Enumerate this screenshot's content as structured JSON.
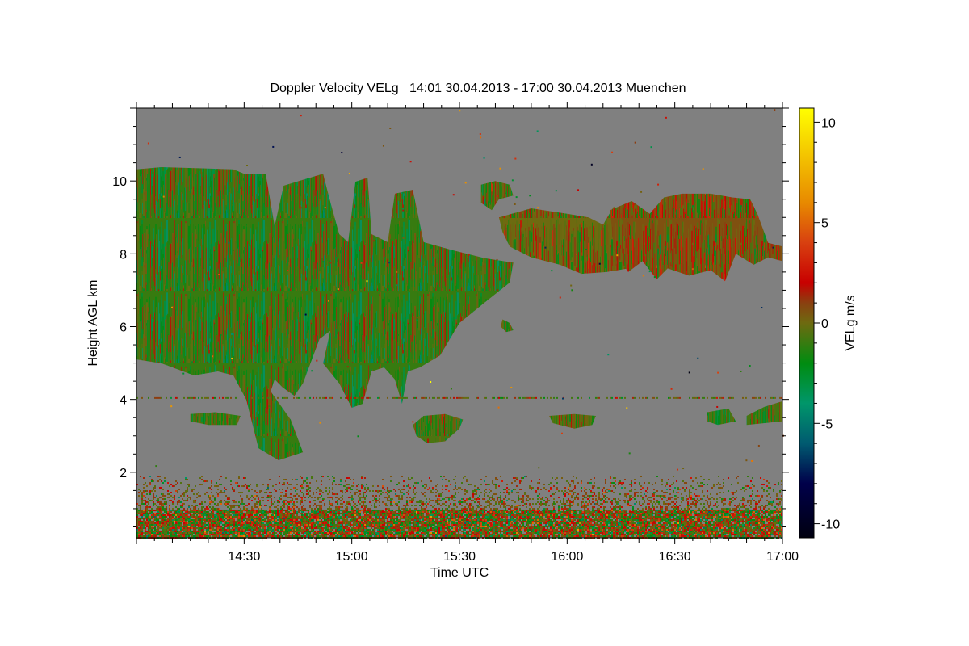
{
  "chart_data": {
    "type": "heatmap",
    "title": "Doppler Velocity VELg   14:01 30.04.2013 - 17:00 30.04.2013 Muenchen",
    "xlabel": "Time UTC",
    "ylabel": "Height AGL km",
    "x_units": "minutes since 14:00 UTC",
    "xlim": [
      0,
      180
    ],
    "ylim": [
      0.2,
      12
    ],
    "xticks": [
      {
        "v": 30,
        "label": "14:30"
      },
      {
        "v": 60,
        "label": "15:00"
      },
      {
        "v": 90,
        "label": "15:30"
      },
      {
        "v": 120,
        "label": "16:00"
      },
      {
        "v": 150,
        "label": "16:30"
      },
      {
        "v": 180,
        "label": "17:00"
      }
    ],
    "yticks": [
      {
        "v": 2,
        "label": "2"
      },
      {
        "v": 4,
        "label": "4"
      },
      {
        "v": 6,
        "label": "6"
      },
      {
        "v": 8,
        "label": "8"
      },
      {
        "v": 10,
        "label": "10"
      }
    ],
    "background_color": "#808080",
    "colorbar": {
      "label": "VELg m/s",
      "clim": [
        -10.7,
        10.7
      ],
      "ticks": [
        {
          "v": 10,
          "label": "10"
        },
        {
          "v": 5,
          "label": "5"
        },
        {
          "v": 0,
          "label": "0"
        },
        {
          "v": -5,
          "label": "-5"
        },
        {
          "v": -10,
          "label": "-10"
        }
      ],
      "stops": [
        [
          -10.7,
          "#000010"
        ],
        [
          -8,
          "#00004a"
        ],
        [
          -6,
          "#005a70"
        ],
        [
          -4,
          "#00966a"
        ],
        [
          -2,
          "#008c10"
        ],
        [
          0,
          "#6e6a10"
        ],
        [
          1,
          "#8a4010"
        ],
        [
          2,
          "#c80000"
        ],
        [
          4,
          "#d84010"
        ],
        [
          6,
          "#e88a00"
        ],
        [
          10.7,
          "#ffff00"
        ]
      ]
    },
    "regions": [
      {
        "name": "main-cirrus-cloud",
        "mean_velocity": -1.0,
        "spread": 1.6,
        "polygon": [
          [
            0,
            10.32
          ],
          [
            7,
            10.38
          ],
          [
            27,
            10.32
          ],
          [
            30,
            10.2
          ],
          [
            36,
            10.2
          ],
          [
            38.5,
            8.76
          ],
          [
            41,
            9.87
          ],
          [
            52,
            10.2
          ],
          [
            54,
            9.43
          ],
          [
            56.5,
            8.54
          ],
          [
            59,
            8.32
          ],
          [
            61,
            9.98
          ],
          [
            64.4,
            10.09
          ],
          [
            65.5,
            8.54
          ],
          [
            70,
            8.32
          ],
          [
            72,
            9.65
          ],
          [
            77,
            9.76
          ],
          [
            80,
            8.32
          ],
          [
            88,
            8.1
          ],
          [
            97,
            7.88
          ],
          [
            105,
            7.76
          ],
          [
            104,
            7.21
          ],
          [
            97,
            6.66
          ],
          [
            90,
            6.1
          ],
          [
            84.6,
            5.21
          ],
          [
            79,
            4.88
          ],
          [
            75.6,
            4.77
          ],
          [
            74,
            3.88
          ],
          [
            72,
            4.55
          ],
          [
            69,
            4.88
          ],
          [
            65.5,
            4.77
          ],
          [
            63,
            3.88
          ],
          [
            60,
            3.77
          ],
          [
            56.5,
            4.44
          ],
          [
            52,
            4.99
          ],
          [
            54,
            5.88
          ],
          [
            51,
            5.66
          ],
          [
            46.4,
            4.44
          ],
          [
            44,
            4.1
          ],
          [
            40.7,
            4.33
          ],
          [
            38.5,
            4.55
          ],
          [
            37.4,
            4.22
          ],
          [
            43,
            3.44
          ],
          [
            46.4,
            2.55
          ],
          [
            39.6,
            2.33
          ],
          [
            34,
            2.66
          ],
          [
            30.6,
            3.99
          ],
          [
            27,
            4.66
          ],
          [
            22.7,
            4.77
          ],
          [
            16,
            4.66
          ],
          [
            7,
            4.99
          ],
          [
            0,
            5.1
          ]
        ]
      },
      {
        "name": "cirrus-cap-1530",
        "mean_velocity": -0.5,
        "spread": 1.4,
        "polygon": [
          [
            96,
            9.9
          ],
          [
            100,
            10.0
          ],
          [
            104,
            9.9
          ],
          [
            105,
            9.6
          ],
          [
            101,
            9.5
          ],
          [
            99,
            9.2
          ],
          [
            96,
            9.4
          ]
        ]
      },
      {
        "name": "cirrus-band-1545",
        "mean_velocity": 0.0,
        "spread": 1.5,
        "polygon": [
          [
            101,
            9.0
          ],
          [
            110,
            9.25
          ],
          [
            120,
            9.1
          ],
          [
            126,
            9.0
          ],
          [
            130,
            8.8
          ],
          [
            133,
            9.3
          ],
          [
            136,
            8.9
          ],
          [
            139,
            8.3
          ],
          [
            137,
            7.6
          ],
          [
            131,
            7.5
          ],
          [
            124,
            7.45
          ],
          [
            118,
            7.7
          ],
          [
            110,
            7.9
          ],
          [
            104,
            8.2
          ],
          [
            102,
            8.6
          ]
        ]
      },
      {
        "name": "cirrus-band-1630",
        "mean_velocity": 0.6,
        "spread": 1.6,
        "polygon": [
          [
            132,
            9.2
          ],
          [
            138,
            9.45
          ],
          [
            143,
            9.1
          ],
          [
            147,
            9.55
          ],
          [
            152,
            9.65
          ],
          [
            160,
            9.65
          ],
          [
            166,
            9.55
          ],
          [
            171,
            9.5
          ],
          [
            173,
            9.1
          ],
          [
            176,
            8.3
          ],
          [
            180,
            8.2
          ],
          [
            180,
            7.8
          ],
          [
            176,
            7.9
          ],
          [
            172,
            7.7
          ],
          [
            167,
            8.0
          ],
          [
            164,
            7.25
          ],
          [
            160,
            7.55
          ],
          [
            154,
            7.4
          ],
          [
            148,
            7.6
          ],
          [
            145,
            7.3
          ],
          [
            141,
            7.8
          ],
          [
            137,
            7.5
          ],
          [
            133,
            8.1
          ]
        ]
      },
      {
        "name": "small-cloud-1440",
        "mean_velocity": -0.8,
        "spread": 1.2,
        "polygon": [
          [
            15,
            3.6
          ],
          [
            22,
            3.65
          ],
          [
            29,
            3.55
          ],
          [
            28,
            3.3
          ],
          [
            20,
            3.3
          ],
          [
            15,
            3.4
          ]
        ]
      },
      {
        "name": "small-cloud-1525",
        "mean_velocity": -0.6,
        "spread": 1.2,
        "polygon": [
          [
            77,
            3.3
          ],
          [
            80,
            3.55
          ],
          [
            86,
            3.6
          ],
          [
            91,
            3.45
          ],
          [
            90,
            3.2
          ],
          [
            86,
            2.85
          ],
          [
            81,
            2.8
          ],
          [
            78,
            3.0
          ]
        ]
      },
      {
        "name": "small-cloud-1545",
        "mean_velocity": -1.0,
        "spread": 1.0,
        "polygon": [
          [
            102,
            6.2
          ],
          [
            104,
            6.1
          ],
          [
            105,
            5.9
          ],
          [
            103,
            5.85
          ],
          [
            101.5,
            6.0
          ]
        ]
      },
      {
        "name": "small-cloud-1605",
        "mean_velocity": -0.5,
        "spread": 1.2,
        "polygon": [
          [
            115,
            3.55
          ],
          [
            122,
            3.6
          ],
          [
            128,
            3.55
          ],
          [
            127,
            3.3
          ],
          [
            122,
            3.2
          ],
          [
            116,
            3.35
          ]
        ]
      },
      {
        "name": "small-cloud-1650",
        "mean_velocity": -1.2,
        "spread": 1.2,
        "polygon": [
          [
            159,
            3.65
          ],
          [
            165,
            3.75
          ],
          [
            167,
            3.4
          ],
          [
            162,
            3.3
          ],
          [
            159,
            3.4
          ]
        ]
      },
      {
        "name": "small-cloud-1657",
        "mean_velocity": -0.8,
        "spread": 1.2,
        "polygon": [
          [
            170,
            3.55
          ],
          [
            175,
            3.8
          ],
          [
            180,
            3.95
          ],
          [
            180,
            3.4
          ],
          [
            175,
            3.35
          ],
          [
            170,
            3.3
          ]
        ]
      }
    ],
    "boundary_layer": {
      "top_km": 1.9,
      "dense_top_km": 1.0,
      "mean_velocity": 0.3,
      "spread": 2.2
    },
    "thin_layer_km": 4.04
  }
}
